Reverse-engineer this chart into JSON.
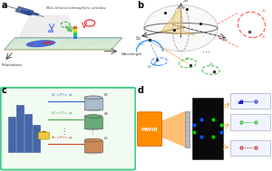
{
  "background_color": "#ffffff",
  "panel_labels": [
    "a",
    "b",
    "c",
    "d"
  ],
  "panel_a": {
    "satellite_color": "#4a6fa5",
    "beam_fill": "#e8e8e8",
    "platform_fill": "#d0edd0",
    "platform_edge": "#99bb99",
    "grid_color": "#99ccaa",
    "title_text": "Mid-infrared atmospheric window",
    "label_wavelength": "Wavelength",
    "label_polarization": "Polarization"
  },
  "panel_b": {
    "sphere_edge": "#888888",
    "sphere_fill": "#eeeeee",
    "equator_color": "#555555",
    "axis_color": "#333333",
    "cone_fill": "#f5d08a",
    "blue_arc": "#3399ff",
    "green_arc": "#44bb44",
    "red_dashed": "#ff7777",
    "orange_line": "#ff8833"
  },
  "panel_c": {
    "border_color": "#44bb88",
    "bg_color": "#f5fff5",
    "building_color": "#4477aa",
    "line_colors": [
      "#3366cc",
      "#44aa44",
      "#cc4422"
    ],
    "cyl_colors": [
      "#aabbcc",
      "#66aa77",
      "#cc8855"
    ],
    "label_texts": [
      "$\\lambda_1=P_1=\\varphi_1$",
      "$\\lambda_2=P_2=\\varphi_2$",
      "$\\lambda_n=P_n=\\varphi_n$"
    ],
    "theta_labels": [
      "$\\theta_1$",
      "$\\theta_2$",
      "$\\theta_n$"
    ]
  },
  "panel_d": {
    "mwir_color": "#ff8c00",
    "beam_color": "#ffaa55",
    "screen_color": "#aaaaaa",
    "black_bg": "#111111",
    "dot_colors_screen": [
      "#00cc00",
      "#0055ff"
    ],
    "panel_colors": [
      "#0000cc",
      "#00aa00",
      "#cc0000"
    ],
    "output_bg": "#f0f0ff",
    "arrow_color": "#ff8800"
  }
}
